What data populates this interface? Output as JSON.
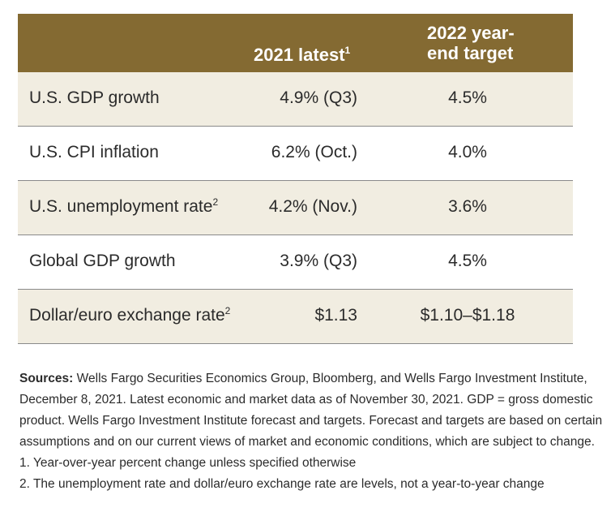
{
  "header": {
    "col2_label": "2021 latest",
    "col2_sup": "1",
    "col3_line1": "2022 year-",
    "col3_line2": "end target"
  },
  "rows": [
    {
      "label": "U.S. GDP growth",
      "sup": "",
      "latest": "4.9% (Q3)",
      "target": "4.5%"
    },
    {
      "label": "U.S. CPI inflation",
      "sup": "",
      "latest": "6.2% (Oct.)",
      "target": "4.0%"
    },
    {
      "label": "U.S. unemployment rate",
      "sup": "2",
      "latest": "4.2% (Nov.)",
      "target": "3.6%"
    },
    {
      "label": "Global GDP growth",
      "sup": "",
      "latest": "3.9% (Q3)",
      "target": "4.5%"
    },
    {
      "label": "Dollar/euro exchange rate",
      "sup": "2",
      "latest": "$1.13",
      "target": "$1.10–$1.18"
    }
  ],
  "notes": {
    "sources_label": "Sources:",
    "sources_text": " Wells Fargo Securities Economics Group, Bloomberg, and Wells Fargo Investment Institute, December 8, 2021. Latest economic and market data as of November 30, 2021. GDP = gross domestic product. Wells Fargo Investment Institute forecast and targets. Forecast and targets are based on certain assumptions and on our current views of market and economic conditions, which are subject to change.",
    "note1": "1. Year-over-year percent change unless specified otherwise",
    "note2": "2. The unemployment rate and dollar/euro exchange rate are levels, not a year-to-year change"
  }
}
